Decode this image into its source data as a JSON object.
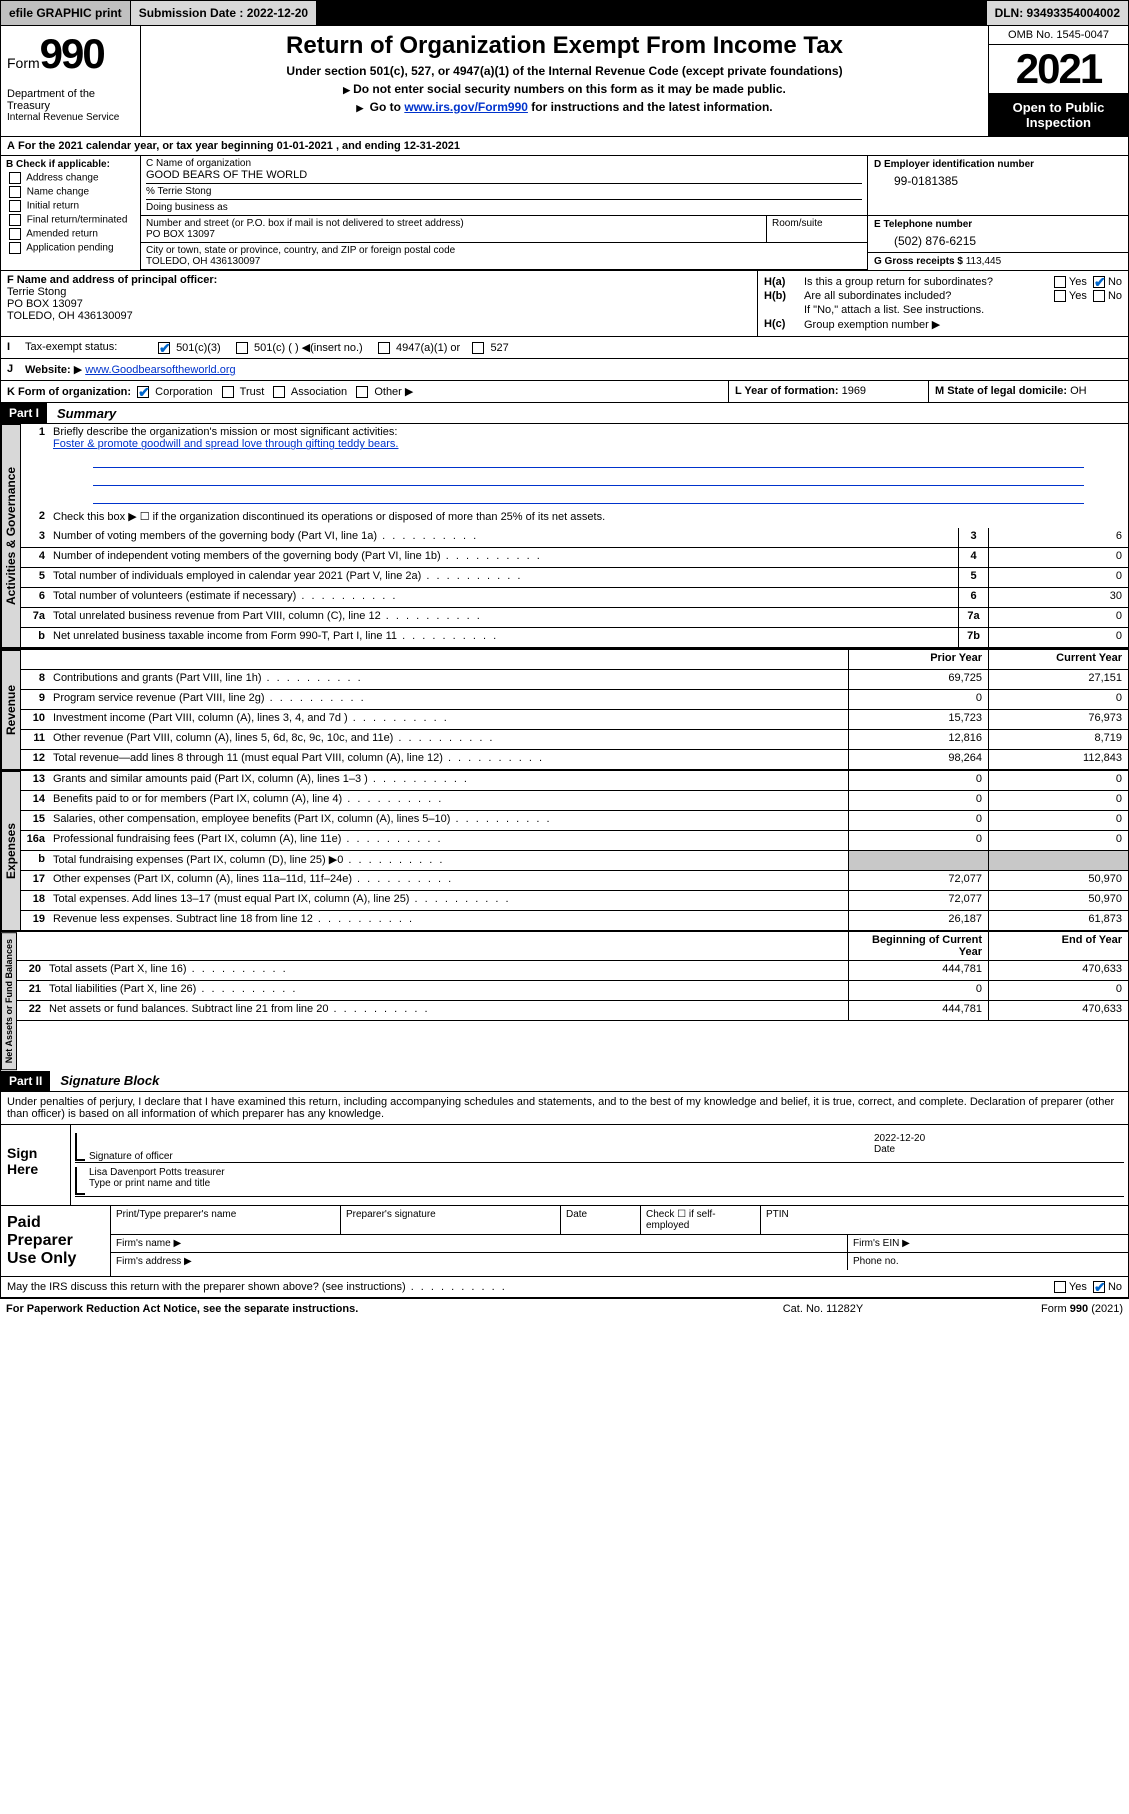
{
  "topbar": {
    "efile": "efile GRAPHIC print",
    "submission_label": "Submission Date : 2022-12-20",
    "dln": "DLN: 93493354004002"
  },
  "header": {
    "form_word": "Form",
    "form_num": "990",
    "dept": "Department of the Treasury",
    "irs": "Internal Revenue Service",
    "title": "Return of Organization Exempt From Income Tax",
    "subtitle": "Under section 501(c), 527, or 4947(a)(1) of the Internal Revenue Code (except private foundations)",
    "note1": "Do not enter social security numbers on this form as it may be made public.",
    "note2_pre": "Go to ",
    "note2_link": "www.irs.gov/Form990",
    "note2_post": " for instructions and the latest information.",
    "omb": "OMB No. 1545-0047",
    "year": "2021",
    "inspect": "Open to Public Inspection"
  },
  "row_a": "For the 2021 calendar year, or tax year beginning 01-01-2021   , and ending 12-31-2021",
  "block_b": {
    "title": "B Check if applicable:",
    "items": [
      "Address change",
      "Name change",
      "Initial return",
      "Final return/terminated",
      "Amended return",
      "Application pending"
    ]
  },
  "block_c": {
    "name_label": "C Name of organization",
    "name": "GOOD BEARS OF THE WORLD",
    "care_of": "% Terrie Stong",
    "dba_label": "Doing business as",
    "street_label": "Number and street (or P.O. box if mail is not delivered to street address)",
    "suite_label": "Room/suite",
    "street": "PO BOX 13097",
    "city_label": "City or town, state or province, country, and ZIP or foreign postal code",
    "city": "TOLEDO, OH  436130097"
  },
  "block_d": {
    "label": "D Employer identification number",
    "value": "99-0181385"
  },
  "block_e": {
    "label": "E Telephone number",
    "value": "(502) 876-6215"
  },
  "block_g": {
    "label": "G Gross receipts $",
    "value": "113,445"
  },
  "block_f": {
    "label": "F Name and address of principal officer:",
    "name": "Terrie Stong",
    "addr1": "PO BOX 13097",
    "addr2": "TOLEDO, OH  436130097"
  },
  "block_h": {
    "ha": "Is this a group return for subordinates?",
    "hb": "Are all subordinates included?",
    "hb_note": "If \"No,\" attach a list. See instructions.",
    "hc": "Group exemption number",
    "yes": "Yes",
    "no": "No"
  },
  "row_i": {
    "label": "Tax-exempt status:",
    "opts": [
      "501(c)(3)",
      "501(c) (  )",
      "(insert no.)",
      "4947(a)(1) or",
      "527"
    ]
  },
  "row_j": {
    "label": "Website:",
    "value": "www.Goodbearsoftheworld.org"
  },
  "row_k": {
    "label": "K Form of organization:",
    "opts": [
      "Corporation",
      "Trust",
      "Association",
      "Other"
    ]
  },
  "row_l": {
    "label": "L Year of formation:",
    "value": "1969"
  },
  "row_m": {
    "label": "M State of legal domicile:",
    "value": "OH"
  },
  "part1": {
    "hdr": "Part I",
    "title": "Summary",
    "line1_label": "Briefly describe the organization's mission or most significant activities:",
    "line1_text": "Foster & promote goodwill and spread love through gifting teddy bears.",
    "line2": "Check this box ▶ ☐  if the organization discontinued its operations or disposed of more than 25% of its net assets.",
    "tabs": {
      "gov": "Activities & Governance",
      "rev": "Revenue",
      "exp": "Expenses",
      "net": "Net Assets or Fund Balances"
    },
    "col_prior": "Prior Year",
    "col_current": "Current Year",
    "col_boy": "Beginning of Current Year",
    "col_eoy": "End of Year",
    "lines_gov": [
      {
        "n": "3",
        "t": "Number of voting members of the governing body (Part VI, line 1a)",
        "box": "3",
        "v": "6"
      },
      {
        "n": "4",
        "t": "Number of independent voting members of the governing body (Part VI, line 1b)",
        "box": "4",
        "v": "0"
      },
      {
        "n": "5",
        "t": "Total number of individuals employed in calendar year 2021 (Part V, line 2a)",
        "box": "5",
        "v": "0"
      },
      {
        "n": "6",
        "t": "Total number of volunteers (estimate if necessary)",
        "box": "6",
        "v": "30"
      },
      {
        "n": "7a",
        "t": "Total unrelated business revenue from Part VIII, column (C), line 12",
        "box": "7a",
        "v": "0"
      },
      {
        "n": "b",
        "t": "Net unrelated business taxable income from Form 990-T, Part I, line 11",
        "box": "7b",
        "v": "0"
      }
    ],
    "lines_rev": [
      {
        "n": "8",
        "t": "Contributions and grants (Part VIII, line 1h)",
        "p": "69,725",
        "c": "27,151"
      },
      {
        "n": "9",
        "t": "Program service revenue (Part VIII, line 2g)",
        "p": "0",
        "c": "0"
      },
      {
        "n": "10",
        "t": "Investment income (Part VIII, column (A), lines 3, 4, and 7d )",
        "p": "15,723",
        "c": "76,973"
      },
      {
        "n": "11",
        "t": "Other revenue (Part VIII, column (A), lines 5, 6d, 8c, 9c, 10c, and 11e)",
        "p": "12,816",
        "c": "8,719"
      },
      {
        "n": "12",
        "t": "Total revenue—add lines 8 through 11 (must equal Part VIII, column (A), line 12)",
        "p": "98,264",
        "c": "112,843"
      }
    ],
    "lines_exp": [
      {
        "n": "13",
        "t": "Grants and similar amounts paid (Part IX, column (A), lines 1–3 )",
        "p": "0",
        "c": "0"
      },
      {
        "n": "14",
        "t": "Benefits paid to or for members (Part IX, column (A), line 4)",
        "p": "0",
        "c": "0"
      },
      {
        "n": "15",
        "t": "Salaries, other compensation, employee benefits (Part IX, column (A), lines 5–10)",
        "p": "0",
        "c": "0"
      },
      {
        "n": "16a",
        "t": "Professional fundraising fees (Part IX, column (A), line 11e)",
        "p": "0",
        "c": "0"
      },
      {
        "n": "b",
        "t": "Total fundraising expenses (Part IX, column (D), line 25) ▶0",
        "p": "",
        "c": "",
        "shade": true
      },
      {
        "n": "17",
        "t": "Other expenses (Part IX, column (A), lines 11a–11d, 11f–24e)",
        "p": "72,077",
        "c": "50,970"
      },
      {
        "n": "18",
        "t": "Total expenses. Add lines 13–17 (must equal Part IX, column (A), line 25)",
        "p": "72,077",
        "c": "50,970"
      },
      {
        "n": "19",
        "t": "Revenue less expenses. Subtract line 18 from line 12",
        "p": "26,187",
        "c": "61,873"
      }
    ],
    "lines_net": [
      {
        "n": "20",
        "t": "Total assets (Part X, line 16)",
        "p": "444,781",
        "c": "470,633"
      },
      {
        "n": "21",
        "t": "Total liabilities (Part X, line 26)",
        "p": "0",
        "c": "0"
      },
      {
        "n": "22",
        "t": "Net assets or fund balances. Subtract line 21 from line 20",
        "p": "444,781",
        "c": "470,633"
      }
    ]
  },
  "part2": {
    "hdr": "Part II",
    "title": "Signature Block",
    "decl": "Under penalties of perjury, I declare that I have examined this return, including accompanying schedules and statements, and to the best of my knowledge and belief, it is true, correct, and complete. Declaration of preparer (other than officer) is based on all information of which preparer has any knowledge.",
    "sign_here": "Sign Here",
    "sig_officer": "Signature of officer",
    "date": "Date",
    "sig_date": "2022-12-20",
    "sig_name": "Lisa Davenport Potts  treasurer",
    "sig_name_label": "Type or print name and title",
    "paid": "Paid Preparer Use Only",
    "prep_name": "Print/Type preparer's name",
    "prep_sig": "Preparer's signature",
    "prep_date": "Date",
    "prep_check": "Check ☐ if self-employed",
    "ptin": "PTIN",
    "firm_name": "Firm's name  ▶",
    "firm_ein": "Firm's EIN ▶",
    "firm_addr": "Firm's address ▶",
    "phone": "Phone no.",
    "discuss": "May the IRS discuss this return with the preparer shown above? (see instructions)"
  },
  "footer": {
    "left": "For Paperwork Reduction Act Notice, see the separate instructions.",
    "mid": "Cat. No. 11282Y",
    "right": "Form 990 (2021)"
  }
}
